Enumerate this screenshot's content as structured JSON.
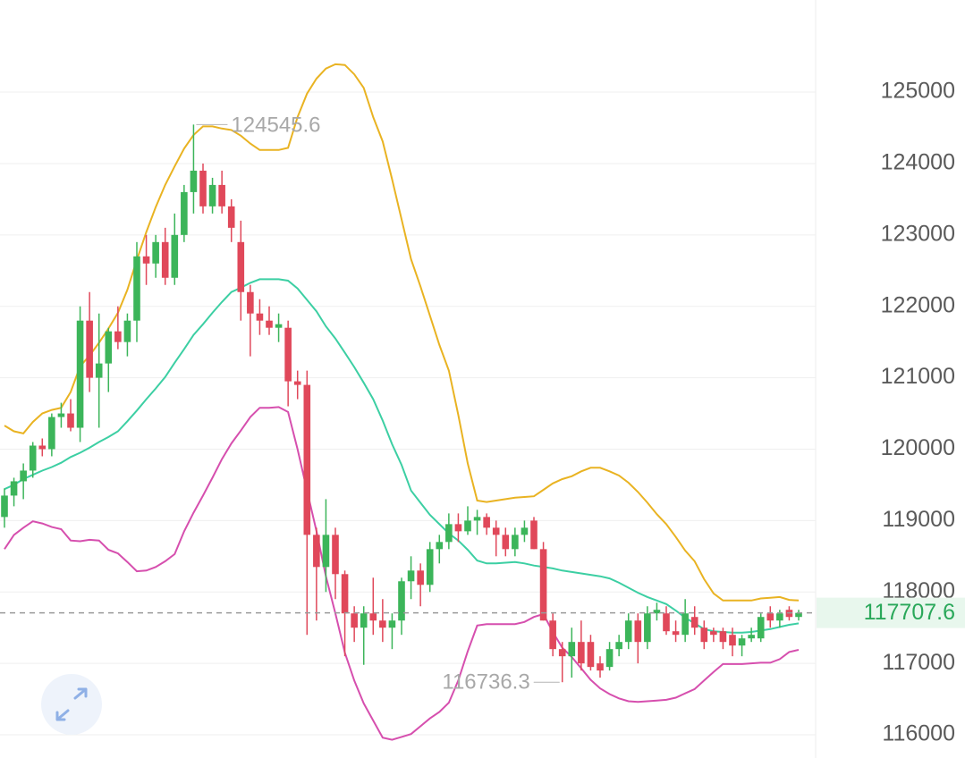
{
  "chart_data": {
    "type": "candlestick",
    "up_color": "#3cb55a",
    "down_color": "#e0485a",
    "open": [
      119050,
      119350,
      119550,
      119700,
      120050,
      120000,
      120450,
      120500,
      120300,
      121800,
      121000,
      121200,
      121650,
      121500,
      121800,
      122700,
      122600,
      122900,
      122400,
      123000,
      123600,
      123900,
      123400,
      123700,
      123400,
      122900,
      122200,
      121900,
      121800,
      121700,
      121700,
      120950,
      120900,
      118800,
      118350,
      118800,
      118250,
      117700,
      117500,
      117700,
      117600,
      117500,
      117600,
      118150,
      118300,
      118100,
      118600,
      118700,
      118950,
      118850,
      119000,
      119050,
      118900,
      118800,
      118600,
      118800,
      119000,
      118600,
      117600,
      117200,
      117100,
      117300,
      117300,
      117000,
      116950,
      117200,
      117300,
      117600,
      117300,
      117700,
      117700,
      117450,
      117400,
      117650,
      117500,
      117450,
      117450,
      117400,
      117250,
      117350,
      117350,
      117700,
      117600,
      117750,
      117650
    ],
    "high": [
      119450,
      119600,
      119800,
      120100,
      120150,
      120500,
      120650,
      120700,
      122000,
      122200,
      121900,
      121700,
      122000,
      121900,
      122900,
      123000,
      123000,
      123100,
      123300,
      123700,
      124545.6,
      124000,
      123800,
      123900,
      123500,
      123200,
      122300,
      122100,
      122000,
      121900,
      121800,
      121100,
      121100,
      118900,
      119300,
      118900,
      118300,
      117800,
      117800,
      118200,
      117900,
      117700,
      118200,
      118500,
      118400,
      118700,
      118800,
      119100,
      119100,
      119200,
      119150,
      119100,
      119000,
      118900,
      118900,
      119000,
      119050,
      118700,
      117700,
      117300,
      117500,
      117600,
      117400,
      117100,
      117300,
      117400,
      117700,
      117700,
      117800,
      117850,
      117800,
      117600,
      117900,
      117800,
      117600,
      117500,
      117500,
      117500,
      117400,
      117500,
      117700,
      117800,
      117750,
      117800,
      117750
    ],
    "low": [
      118900,
      119200,
      119300,
      119600,
      119900,
      119900,
      120300,
      120250,
      120100,
      120800,
      120300,
      120800,
      121400,
      121300,
      121500,
      122300,
      122400,
      122300,
      122300,
      122900,
      123300,
      123300,
      123300,
      123300,
      122900,
      121800,
      121300,
      121600,
      121600,
      121500,
      120600,
      120700,
      117400,
      117600,
      118000,
      117900,
      117100,
      117300,
      116980,
      117400,
      117300,
      117200,
      117400,
      117900,
      117800,
      118000,
      118400,
      118600,
      118700,
      118800,
      118800,
      118800,
      118500,
      118500,
      118500,
      118700,
      118600,
      117600,
      117100,
      116736.3,
      116800,
      116900,
      116900,
      116800,
      116900,
      117100,
      117200,
      117000,
      117200,
      117600,
      117400,
      117300,
      117300,
      117400,
      117200,
      117300,
      117200,
      117100,
      117100,
      117300,
      117300,
      117500,
      117500,
      117600,
      117600
    ],
    "close": [
      119350,
      119550,
      119700,
      120050,
      120000,
      120450,
      120500,
      120300,
      121800,
      121000,
      121200,
      121650,
      121500,
      121800,
      122700,
      122600,
      122900,
      122400,
      123000,
      123600,
      123900,
      123400,
      123700,
      123400,
      123100,
      122200,
      121900,
      121800,
      121700,
      121750,
      120950,
      120900,
      118800,
      118350,
      118800,
      118250,
      117700,
      117500,
      117700,
      117600,
      117500,
      117600,
      118150,
      118300,
      118100,
      118600,
      118700,
      118950,
      118850,
      119000,
      119050,
      118900,
      118800,
      118600,
      118800,
      118900,
      118600,
      117600,
      117200,
      117100,
      117300,
      117000,
      116950,
      116900,
      117200,
      117300,
      117600,
      117300,
      117700,
      117750,
      117450,
      117400,
      117700,
      117500,
      117300,
      117400,
      117300,
      117250,
      117350,
      117400,
      117650,
      117600,
      117700,
      117650,
      117707.6
    ],
    "overlays": [
      {
        "color": "#e9b322",
        "values": [
          120330,
          120250,
          120220,
          120380,
          120500,
          120550,
          120580,
          120800,
          121160,
          121310,
          121490,
          121690,
          121910,
          122230,
          122650,
          123040,
          123390,
          123700,
          123960,
          124210,
          124400,
          124520,
          124520,
          124490,
          124470,
          124390,
          124280,
          124190,
          124190,
          124190,
          124220,
          124650,
          124980,
          125190,
          125330,
          125390,
          125380,
          125250,
          125060,
          124650,
          124310,
          123780,
          123220,
          122660,
          122280,
          121870,
          121460,
          121100,
          120480,
          119800,
          119280,
          119260,
          119280,
          119300,
          119320,
          119330,
          119340,
          119430,
          119520,
          119580,
          119620,
          119690,
          119740,
          119740,
          119690,
          119630,
          119530,
          119400,
          119250,
          119090,
          118950,
          118770,
          118580,
          118430,
          118180,
          117980,
          117880,
          117880,
          117880,
          117880,
          117910,
          117920,
          117930,
          117890,
          117880
        ]
      },
      {
        "color": "#3ccfa3",
        "values": [
          119440,
          119500,
          119580,
          119640,
          119700,
          119750,
          119810,
          119890,
          119950,
          120020,
          120100,
          120170,
          120250,
          120390,
          120540,
          120700,
          120850,
          121010,
          121210,
          121400,
          121600,
          121750,
          121910,
          122060,
          122200,
          122260,
          122330,
          122380,
          122380,
          122380,
          122360,
          122250,
          122090,
          121930,
          121720,
          121550,
          121350,
          121150,
          120930,
          120700,
          120400,
          120070,
          119780,
          119420,
          119250,
          119080,
          118950,
          118820,
          118720,
          118590,
          118440,
          118400,
          118400,
          118410,
          118420,
          118400,
          118370,
          118350,
          118330,
          118300,
          118280,
          118260,
          118240,
          118220,
          118190,
          118130,
          118060,
          117990,
          117930,
          117880,
          117830,
          117740,
          117640,
          117560,
          117480,
          117450,
          117440,
          117430,
          117430,
          117440,
          117460,
          117480,
          117510,
          117540,
          117560
        ]
      },
      {
        "color": "#d64fae",
        "values": [
          118600,
          118800,
          118900,
          118990,
          118960,
          118910,
          118880,
          118720,
          118710,
          118730,
          118720,
          118590,
          118540,
          118420,
          118290,
          118300,
          118350,
          118430,
          118530,
          118850,
          119110,
          119350,
          119600,
          119860,
          120080,
          120260,
          120450,
          120580,
          120580,
          120590,
          120520,
          120000,
          119420,
          118850,
          118220,
          117700,
          117150,
          116760,
          116440,
          116200,
          115960,
          115930,
          115970,
          116010,
          116120,
          116230,
          116320,
          116450,
          116760,
          117170,
          117530,
          117550,
          117550,
          117550,
          117550,
          117580,
          117650,
          117690,
          117440,
          117220,
          117090,
          116930,
          116770,
          116650,
          116570,
          116510,
          116470,
          116460,
          116470,
          116480,
          116490,
          116520,
          116580,
          116640,
          116760,
          116880,
          116990,
          116990,
          116990,
          117000,
          117010,
          117010,
          117060,
          117160,
          117190
        ]
      }
    ],
    "ylim": [
      115675,
      126290
    ],
    "yticks": [
      116000,
      117000,
      118000,
      119000,
      120000,
      121000,
      122000,
      123000,
      124000,
      125000
    ],
    "grid": true
  }
}
